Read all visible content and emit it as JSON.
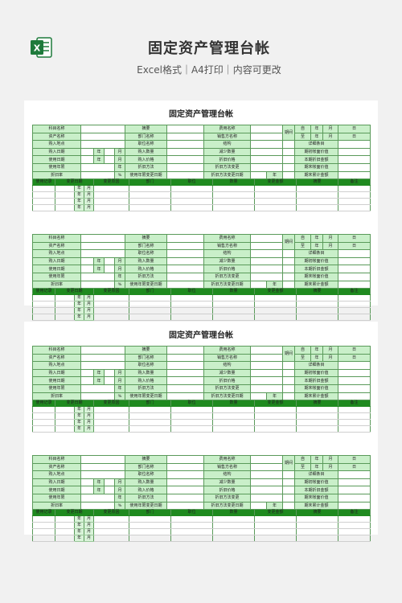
{
  "header": {
    "title": "固定资产管理台帐",
    "subtitle": "Excel格式｜A4打印｜内容可更改",
    "icon": "excel-icon",
    "brand_color": "#1e7a3b"
  },
  "sheet": {
    "title": "固定资产管理台帐"
  },
  "form": {
    "row1": [
      "科目名称",
      "摘要",
      "费用名称",
      "期间",
      "自",
      "年",
      "月",
      "日"
    ],
    "row2": [
      "资产名称",
      "部门名称",
      "销售方名称",
      "至",
      "年",
      "月",
      "日"
    ],
    "row3": [
      "购入地点",
      "职位名称",
      "结构",
      "详细条目"
    ],
    "row4": [
      "购入日期",
      "年",
      "月",
      "购入数量",
      "减少数量",
      "期初帐面价值"
    ],
    "row5": [
      "使用日期",
      "年",
      "月",
      "购入价格",
      "折旧价格",
      "本期折旧金额"
    ],
    "row6": [
      "使用年限",
      "年",
      "折旧方法",
      "折旧方法变更",
      "期末帐面价值"
    ],
    "row7": [
      "折旧率",
      "%",
      "使用年限变更日期",
      "年",
      "月",
      "折旧方法变更日期",
      "年",
      "月",
      "期末累计金额"
    ],
    "usage_header": [
      "使用记录",
      "变更日期",
      "变更原因",
      "部门",
      "职位",
      "数量",
      "变更金额",
      "摘要",
      "备注"
    ],
    "date_row": [
      "年",
      "月"
    ]
  },
  "colors": {
    "header_green": "#c9efc9",
    "dark_green": "#1f8a1f",
    "border_green": "#5a9a5a"
  }
}
